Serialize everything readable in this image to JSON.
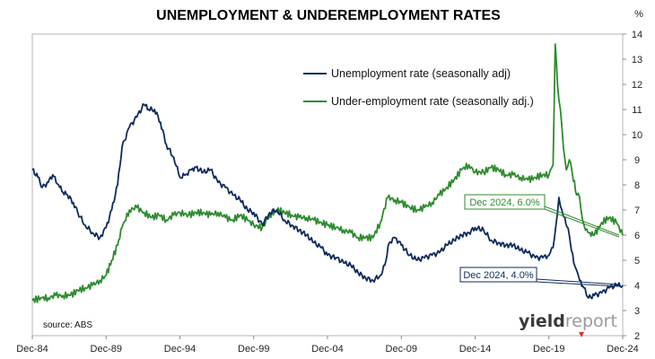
{
  "chart_data": {
    "type": "line",
    "title": "UNEMPLOYMENT & UNDEREMPLOYMENT RATES",
    "y_unit": "%",
    "ylim": [
      2,
      14
    ],
    "y_ticks": [
      2,
      3,
      4,
      5,
      6,
      7,
      8,
      9,
      10,
      11,
      12,
      13,
      14
    ],
    "x_ticks": [
      "Dec-84",
      "Dec-89",
      "Dec-94",
      "Dec-99",
      "Dec-04",
      "Dec-09",
      "Dec-14",
      "Dec-19",
      "Dec-24"
    ],
    "legend_position": "top-center",
    "grid": false,
    "series": [
      {
        "name": "Unemployment rate (seasonally adj)",
        "color": "#0f2a5e",
        "x": [
          1984.92,
          1985.3,
          1985.6,
          1986.0,
          1986.3,
          1986.7,
          1987.0,
          1987.3,
          1987.7,
          1988.0,
          1988.5,
          1989.0,
          1989.5,
          1989.92,
          1990.3,
          1990.7,
          1991.0,
          1991.5,
          1992.0,
          1992.5,
          1992.8,
          1993.2,
          1993.6,
          1994.0,
          1994.5,
          1994.92,
          1995.3,
          1995.7,
          1996.0,
          1996.5,
          1997.0,
          1997.5,
          1998.0,
          1998.5,
          1999.0,
          1999.5,
          1999.92,
          2000.5,
          2001.0,
          2001.5,
          2002.0,
          2002.5,
          2003.0,
          2003.5,
          2004.0,
          2004.5,
          2004.92,
          2005.5,
          2006.0,
          2006.5,
          2007.0,
          2007.5,
          2008.0,
          2008.5,
          2008.8,
          2009.1,
          2009.5,
          2009.92,
          2010.5,
          2011.0,
          2011.5,
          2012.0,
          2012.5,
          2013.0,
          2013.5,
          2014.0,
          2014.5,
          2014.92,
          2015.5,
          2016.0,
          2016.5,
          2017.0,
          2017.5,
          2018.0,
          2018.5,
          2019.0,
          2019.5,
          2019.92,
          2020.2,
          2020.4,
          2020.6,
          2020.8,
          2021.0,
          2021.3,
          2021.6,
          2021.8,
          2022.0,
          2022.3,
          2022.6,
          2023.0,
          2023.5,
          2024.0,
          2024.5,
          2024.92
        ],
        "values": [
          8.6,
          8.3,
          7.9,
          8.1,
          8.4,
          8.0,
          7.7,
          7.6,
          7.3,
          6.9,
          6.4,
          6.1,
          5.9,
          6.3,
          7.0,
          8.0,
          9.5,
          10.3,
          10.7,
          11.2,
          11.0,
          11.0,
          10.5,
          9.6,
          9.1,
          8.3,
          8.4,
          8.6,
          8.7,
          8.5,
          8.6,
          8.1,
          7.9,
          7.6,
          7.4,
          7.0,
          6.9,
          6.4,
          6.9,
          7.0,
          6.6,
          6.4,
          6.2,
          6.0,
          5.7,
          5.5,
          5.2,
          5.1,
          4.9,
          4.8,
          4.5,
          4.3,
          4.2,
          4.4,
          4.8,
          5.7,
          5.9,
          5.6,
          5.2,
          5.0,
          5.1,
          5.2,
          5.3,
          5.6,
          5.8,
          6.0,
          6.1,
          6.3,
          6.2,
          5.8,
          5.7,
          5.6,
          5.6,
          5.4,
          5.3,
          5.1,
          5.1,
          5.2,
          5.5,
          6.4,
          7.5,
          7.0,
          6.7,
          6.0,
          4.9,
          4.6,
          4.2,
          3.9,
          3.5,
          3.6,
          3.7,
          3.9,
          4.0,
          4.0
        ]
      },
      {
        "name": "Under-employment rate (seasonally adj.)",
        "color": "#2e8b2e",
        "x": [
          1984.92,
          1985.5,
          1986.0,
          1986.5,
          1987.0,
          1987.5,
          1988.0,
          1988.5,
          1989.0,
          1989.5,
          1989.92,
          1990.3,
          1990.7,
          1991.0,
          1991.5,
          1992.0,
          1992.5,
          1993.0,
          1993.5,
          1994.0,
          1994.5,
          1994.92,
          1995.5,
          1996.0,
          1996.5,
          1997.0,
          1997.5,
          1998.0,
          1998.5,
          1999.0,
          1999.5,
          1999.92,
          2000.5,
          2001.0,
          2001.5,
          2002.0,
          2002.5,
          2003.0,
          2003.5,
          2004.0,
          2004.5,
          2004.92,
          2005.5,
          2006.0,
          2006.5,
          2007.0,
          2007.5,
          2008.0,
          2008.5,
          2009.0,
          2009.5,
          2009.92,
          2010.5,
          2011.0,
          2011.5,
          2012.0,
          2012.5,
          2013.0,
          2013.5,
          2014.0,
          2014.5,
          2014.92,
          2015.5,
          2016.0,
          2016.5,
          2017.0,
          2017.5,
          2018.0,
          2018.5,
          2019.0,
          2019.5,
          2019.92,
          2020.2,
          2020.35,
          2020.5,
          2020.7,
          2020.9,
          2021.1,
          2021.3,
          2021.5,
          2021.8,
          2022.0,
          2022.2,
          2022.4,
          2022.7,
          2023.0,
          2023.5,
          2024.0,
          2024.5,
          2024.92
        ],
        "values": [
          3.4,
          3.5,
          3.5,
          3.6,
          3.6,
          3.6,
          3.8,
          3.9,
          4.0,
          4.2,
          4.4,
          5.0,
          5.6,
          6.3,
          7.0,
          7.1,
          6.9,
          6.7,
          6.8,
          6.6,
          6.8,
          6.9,
          6.8,
          6.9,
          6.9,
          6.8,
          6.9,
          6.7,
          6.6,
          6.8,
          6.6,
          6.4,
          6.3,
          6.8,
          7.0,
          6.9,
          6.8,
          6.7,
          6.7,
          6.6,
          6.5,
          6.4,
          6.3,
          6.2,
          6.1,
          5.9,
          5.9,
          5.9,
          6.5,
          7.5,
          7.4,
          7.3,
          7.1,
          7.0,
          7.1,
          7.3,
          7.6,
          7.9,
          8.2,
          8.6,
          8.8,
          8.5,
          8.5,
          8.7,
          8.6,
          8.4,
          8.4,
          8.3,
          8.2,
          8.3,
          8.4,
          8.4,
          8.8,
          13.6,
          12.0,
          11.0,
          9.5,
          8.6,
          9.0,
          8.5,
          7.6,
          7.5,
          6.6,
          6.2,
          6.1,
          6.0,
          6.5,
          6.7,
          6.5,
          6.0
        ]
      }
    ],
    "annotations": [
      {
        "label": "Dec 2024, 6.0%",
        "color": "#2e8b2e"
      },
      {
        "label": "Dec 2024, 4.0%",
        "color": "#0f2a5e"
      }
    ],
    "source": "source: ABS",
    "logo": "yieldreport"
  }
}
